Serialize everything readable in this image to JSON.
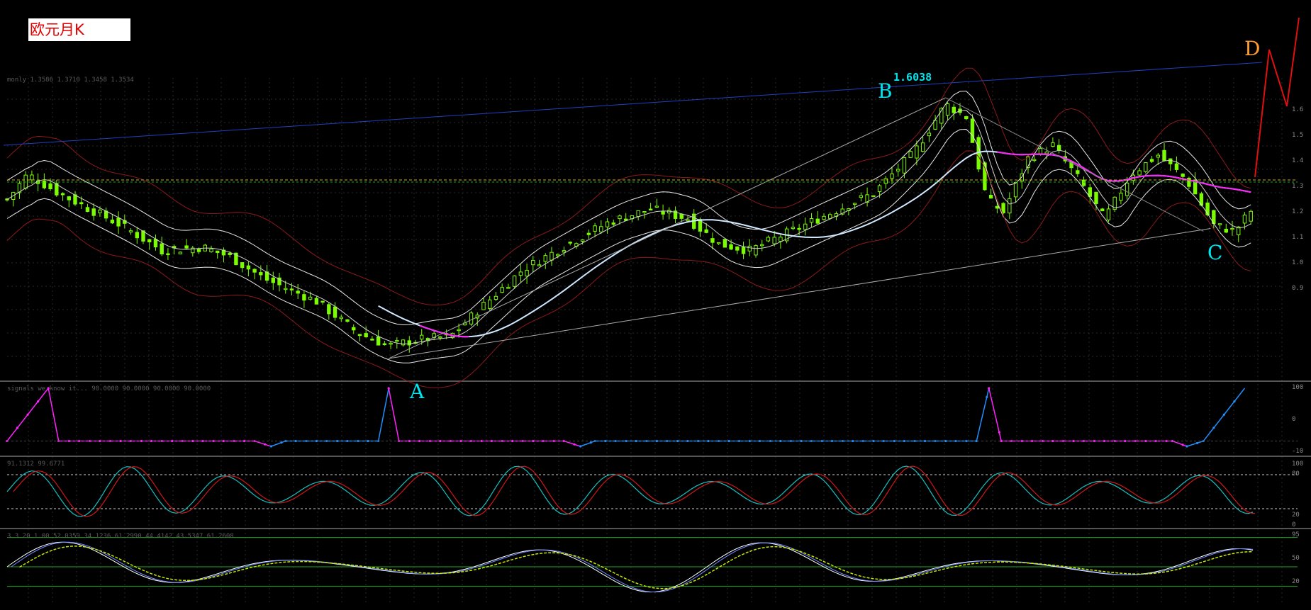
{
  "title": "欧元月K",
  "colors": {
    "background": "#000000",
    "bull_candle": "#7cfc00",
    "grid": "#2a2a2a",
    "trendline_blue": "#2040c0",
    "bollinger": "#8b1a1a",
    "ma_slow": "#cfe8ff",
    "ma_slow_highlight": "#ff22ff",
    "label_cyan": "#00e5ee",
    "label_orange": "#ff9d2e",
    "projection_red": "#e01010"
  },
  "wave_points": {
    "A": {
      "label": "A",
      "color": "#00e5ee"
    },
    "B": {
      "label": "B",
      "color": "#00e5ee"
    },
    "C": {
      "label": "C",
      "color": "#00e5ee"
    },
    "D": {
      "label": "D",
      "color": "#ff9d2e"
    }
  },
  "peak_value": "1.6038",
  "indicator_text": {
    "main": "monly 1.3586 1.3710 1.3458 1.3534",
    "sub1": "signals we know it... 90.0000 90.0000 90.0000 90.0000",
    "sub2": "91.1312 99.6771",
    "sub3": "3 3 20 1.00 52.0359 34.1236 61.2990 44.4142 43.5347 61.2608"
  },
  "right_axis": {
    "main_ticks": [
      "1.6",
      "1.5",
      "1.4",
      "1.3",
      "1.2",
      "1.1",
      "1.0",
      "0.9"
    ],
    "sub1_ticks": [
      "100",
      "0",
      "-10"
    ],
    "sub2_ticks": [
      "100",
      "80",
      "20",
      "0"
    ],
    "sub3_ticks": [
      "95",
      "50",
      "20"
    ]
  },
  "chart_data": {
    "type": "candlestick",
    "title": "欧元月K",
    "series": [
      {
        "name": "close",
        "approx_values": [
          1.1,
          1.16,
          1.04,
          1.0,
          0.96,
          0.92,
          0.96,
          0.9,
          0.85,
          0.83,
          0.86,
          0.88,
          0.86,
          0.9,
          1.0,
          1.1,
          1.18,
          1.24,
          1.28,
          1.22,
          1.18,
          1.26,
          1.32,
          1.37,
          1.46,
          1.58,
          1.6,
          1.26,
          1.4,
          1.44,
          1.36,
          1.28,
          1.4,
          1.32,
          1.24,
          1.3,
          1.35
        ]
      }
    ],
    "annotations": [
      "A",
      "B",
      "C",
      "D",
      "1.6038"
    ]
  }
}
